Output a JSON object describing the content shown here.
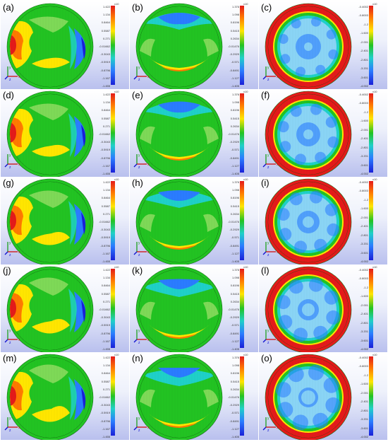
{
  "figure": {
    "exponent_label": "x10",
    "columns": [
      {
        "ticks": [
          "1.422",
          "1.134",
          "0.8464",
          "0.5587",
          "0.271",
          "-0.01662",
          "-0.3043",
          "-0.5919",
          "-0.8796",
          "-1.167",
          "-1.455"
        ],
        "colormap": [
          "#e41a1a",
          "#ff7a00",
          "#ffe600",
          "#22c322",
          "#1fd0c8",
          "#2a7cff",
          "#1a20d8"
        ]
      },
      {
        "ticks": [
          "1.376",
          "1.098",
          "0.8196",
          "0.5415",
          "0.2634",
          "-0.01476",
          "-0.2929",
          "-0.571",
          "-0.8491",
          "-1.127",
          "-1.405"
        ],
        "colormap": [
          "#e41a1a",
          "#ff7a00",
          "#ffe600",
          "#22c322",
          "#1fd0c8",
          "#2a7cff",
          "#1a20d8"
        ]
      },
      {
        "ticks": [
          "-0.4002",
          "-0.8003",
          "-1.2",
          "-1.600",
          "-2.001",
          "-2.401",
          "-2.801",
          "-3.201",
          "-3.601",
          "-4.002"
        ],
        "colormap": [
          "#e41a1a",
          "#ff7a00",
          "#ffe600",
          "#22c322",
          "#1fd0c8",
          "#2a7cff",
          "#1a20d8"
        ]
      }
    ],
    "panels": [
      {
        "label": "(a)",
        "column": 0
      },
      {
        "label": "(b)",
        "column": 1
      },
      {
        "label": "(c)",
        "column": 2
      },
      {
        "label": "(d)",
        "column": 0
      },
      {
        "label": "(e)",
        "column": 1
      },
      {
        "label": "(f)",
        "column": 2
      },
      {
        "label": "(g)",
        "column": 0
      },
      {
        "label": "(h)",
        "column": 1
      },
      {
        "label": "(i)",
        "column": 2
      },
      {
        "label": "(j)",
        "column": 0
      },
      {
        "label": "(k)",
        "column": 1
      },
      {
        "label": "(l)",
        "column": 2
      },
      {
        "label": "(m)",
        "column": 0
      },
      {
        "label": "(n)",
        "column": 1
      },
      {
        "label": "(o)",
        "column": 2
      }
    ],
    "axis_labels": {
      "x": "x",
      "y": "y",
      "z": "z"
    },
    "colors": {
      "red": "#e41a1a",
      "orange": "#ff7a00",
      "yellow": "#ffe600",
      "green": "#22c322",
      "light_green": "#7ed957",
      "cyan": "#1fd0c8",
      "light_blue": "#8ad4f5",
      "blue": "#2a7cff",
      "dark_blue": "#1a20d8"
    }
  }
}
